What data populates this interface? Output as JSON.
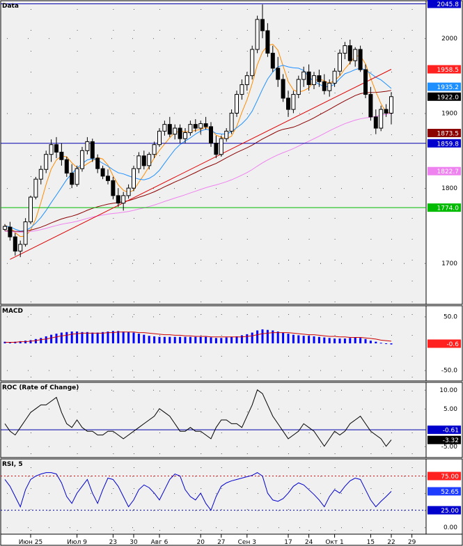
{
  "chart_data": [
    {
      "type": "candlestick",
      "panel": "price",
      "title": "Data",
      "yticks": [
        1700,
        1800,
        1900,
        2000
      ],
      "ylim": [
        1645,
        2050
      ],
      "candles": [
        [
          1745,
          1752,
          1743,
          1749
        ],
        [
          1748,
          1755,
          1730,
          1735
        ],
        [
          1735,
          1740,
          1710,
          1716
        ],
        [
          1716,
          1730,
          1708,
          1725
        ],
        [
          1725,
          1760,
          1722,
          1755
        ],
        [
          1755,
          1790,
          1752,
          1788
        ],
        [
          1788,
          1815,
          1785,
          1812
        ],
        [
          1812,
          1830,
          1805,
          1825
        ],
        [
          1825,
          1850,
          1820,
          1845
        ],
        [
          1845,
          1865,
          1835,
          1858
        ],
        [
          1858,
          1868,
          1840,
          1848
        ],
        [
          1848,
          1860,
          1830,
          1838
        ],
        [
          1838,
          1842,
          1815,
          1820
        ],
        [
          1820,
          1832,
          1800,
          1805
        ],
        [
          1805,
          1830,
          1802,
          1826
        ],
        [
          1826,
          1855,
          1822,
          1850
        ],
        [
          1850,
          1868,
          1845,
          1862
        ],
        [
          1862,
          1866,
          1835,
          1840
        ],
        [
          1840,
          1845,
          1820,
          1826
        ],
        [
          1826,
          1830,
          1812,
          1816
        ],
        [
          1816,
          1825,
          1805,
          1810
        ],
        [
          1810,
          1815,
          1785,
          1790
        ],
        [
          1790,
          1800,
          1775,
          1780
        ],
        [
          1780,
          1795,
          1770,
          1790
        ],
        [
          1790,
          1805,
          1786,
          1800
        ],
        [
          1800,
          1830,
          1796,
          1826
        ],
        [
          1826,
          1848,
          1820,
          1843
        ],
        [
          1843,
          1850,
          1825,
          1830
        ],
        [
          1830,
          1848,
          1825,
          1845
        ],
        [
          1845,
          1862,
          1840,
          1858
        ],
        [
          1858,
          1880,
          1855,
          1876
        ],
        [
          1876,
          1890,
          1870,
          1885
        ],
        [
          1885,
          1895,
          1868,
          1872
        ],
        [
          1872,
          1885,
          1865,
          1880
        ],
        [
          1880,
          1885,
          1860,
          1866
        ],
        [
          1866,
          1880,
          1860,
          1874
        ],
        [
          1874,
          1890,
          1870,
          1885
        ],
        [
          1885,
          1892,
          1875,
          1880
        ],
        [
          1880,
          1890,
          1872,
          1886
        ],
        [
          1886,
          1895,
          1878,
          1882
        ],
        [
          1882,
          1888,
          1855,
          1860
        ],
        [
          1860,
          1870,
          1840,
          1845
        ],
        [
          1845,
          1870,
          1842,
          1866
        ],
        [
          1866,
          1880,
          1862,
          1876
        ],
        [
          1876,
          1905,
          1872,
          1900
        ],
        [
          1900,
          1930,
          1895,
          1925
        ],
        [
          1925,
          1945,
          1918,
          1938
        ],
        [
          1938,
          1955,
          1930,
          1950
        ],
        [
          1950,
          1990,
          1945,
          1985
        ],
        [
          1985,
          2030,
          1980,
          2025
        ],
        [
          2025,
          2045,
          2000,
          2010
        ],
        [
          2010,
          2020,
          1975,
          1980
        ],
        [
          1980,
          1990,
          1955,
          1960
        ],
        [
          1960,
          1975,
          1935,
          1945
        ],
        [
          1945,
          1952,
          1915,
          1920
        ],
        [
          1920,
          1930,
          1895,
          1905
        ],
        [
          1905,
          1930,
          1900,
          1925
        ],
        [
          1925,
          1950,
          1920,
          1945
        ],
        [
          1945,
          1962,
          1935,
          1955
        ],
        [
          1955,
          1965,
          1930,
          1938
        ],
        [
          1938,
          1955,
          1932,
          1950
        ],
        [
          1950,
          1958,
          1935,
          1942
        ],
        [
          1942,
          1952,
          1925,
          1930
        ],
        [
          1930,
          1945,
          1922,
          1940
        ],
        [
          1940,
          1960,
          1935,
          1956
        ],
        [
          1956,
          1985,
          1950,
          1980
        ],
        [
          1980,
          1995,
          1972,
          1990
        ],
        [
          1990,
          1998,
          1965,
          1970
        ],
        [
          1970,
          1988,
          1962,
          1985
        ],
        [
          1985,
          1990,
          1955,
          1958
        ],
        [
          1958,
          1965,
          1920,
          1925
        ],
        [
          1925,
          1935,
          1890,
          1895
        ],
        [
          1895,
          1905,
          1872,
          1880
        ],
        [
          1880,
          1910,
          1876,
          1905
        ],
        [
          1905,
          1912,
          1895,
          1900
        ],
        [
          1900,
          1928,
          1885,
          1922
        ]
      ],
      "last_price": 1922.0,
      "indicators": [
        {
          "name": "fast-ma",
          "color": "#ff8c00",
          "period": 5
        },
        {
          "name": "mid-ma",
          "color": "#1e90ff",
          "period": 10
        },
        {
          "name": "slow-ma",
          "color": "#8b0000",
          "period": 40
        },
        {
          "name": "long-ma",
          "color": "#ee82ee",
          "period": 60
        }
      ],
      "ma_seed": [
        1763,
        1756,
        1752,
        1749,
        1746,
        1744,
        1743,
        1742,
        1741,
        1740,
        1739,
        1739,
        1739,
        1738,
        1738,
        1738,
        1738,
        1738,
        1738,
        1737,
        1737,
        1737,
        1737,
        1737,
        1737,
        1737,
        1737,
        1738,
        1738,
        1738,
        1738,
        1738,
        1739,
        1739,
        1739,
        1740,
        1740,
        1741,
        1741,
        1742,
        1742,
        1743,
        1743,
        1744,
        1744,
        1745,
        1745,
        1746,
        1746,
        1747,
        1747,
        1748,
        1748,
        1749,
        1749,
        1750,
        1750,
        1751,
        1751,
        1752
      ],
      "trendlines": [
        {
          "name": "rising-trendline",
          "color": "#dd0000",
          "from": [
            1,
            1705
          ],
          "to": [
            75,
            1958.5
          ]
        }
      ],
      "hlines": [
        {
          "name": "top-hline",
          "value": 2045.8,
          "color": "#0000aa"
        },
        {
          "name": "support-hline",
          "value": 1859.8,
          "color": "#0000aa"
        },
        {
          "name": "green-hline",
          "value": 1774.0,
          "color": "#00bb00"
        }
      ],
      "value_labels": [
        {
          "name": "label-2045",
          "text": "2045.8",
          "value": 2045.8,
          "bg": "#0000cc",
          "fg": "#ffffff"
        },
        {
          "name": "label-1958",
          "text": "1958.5",
          "value": 1958.5,
          "bg": "#ff2020",
          "fg": "#ffffff"
        },
        {
          "name": "label-1935",
          "text": "1935.2",
          "value": 1935.2,
          "bg": "#1e8fff",
          "fg": "#ffffff"
        },
        {
          "name": "label-1922",
          "text": "1922.0",
          "value": 1922.0,
          "bg": "#000000",
          "fg": "#ffffff"
        },
        {
          "name": "label-1873",
          "text": "1873.5",
          "value": 1873.5,
          "bg": "#8b0000",
          "fg": "#ffffff"
        },
        {
          "name": "label-1859",
          "text": "1859.8",
          "value": 1859.8,
          "bg": "#0000cc",
          "fg": "#ffffff"
        },
        {
          "name": "label-1822",
          "text": "1822.7",
          "value": 1822.7,
          "bg": "#ee82ee",
          "fg": "#ffffff"
        },
        {
          "name": "label-1774",
          "text": "1774.0",
          "value": 1774.0,
          "bg": "#00bb00",
          "fg": "#ffffff"
        }
      ]
    },
    {
      "type": "bar",
      "panel": "macd",
      "title": "MACD",
      "yticks": [
        50.0,
        -50.0
      ],
      "ylim": [
        -70,
        70
      ],
      "values": [
        3,
        2,
        3,
        4,
        5,
        6,
        8,
        10,
        13,
        16,
        18,
        20,
        21,
        22,
        22,
        21,
        21,
        20,
        20,
        21,
        22,
        23,
        23,
        22,
        21,
        20,
        18,
        16,
        14,
        13,
        12,
        12,
        12,
        12,
        12,
        12,
        12,
        12,
        12,
        12,
        11,
        10,
        10,
        11,
        12,
        13,
        15,
        17,
        20,
        24,
        26,
        25,
        24,
        22,
        20,
        18,
        16,
        15,
        14,
        14,
        13,
        12,
        11,
        10,
        9,
        9,
        9,
        10,
        11,
        10,
        8,
        5,
        3,
        1,
        -1,
        -2
      ],
      "signal": [
        2,
        2,
        2,
        3,
        3,
        4,
        5,
        7,
        8,
        10,
        12,
        14,
        15,
        17,
        18,
        19,
        19,
        19,
        19,
        19,
        20,
        20,
        21,
        21,
        21,
        21,
        20,
        20,
        19,
        18,
        17,
        16,
        16,
        15,
        15,
        14,
        14,
        13,
        13,
        13,
        12,
        12,
        12,
        12,
        12,
        12,
        12,
        13,
        14,
        16,
        18,
        19,
        20,
        20,
        20,
        20,
        19,
        18,
        17,
        16,
        16,
        15,
        14,
        13,
        13,
        12,
        12,
        11,
        11,
        11,
        10,
        9,
        8,
        6,
        5,
        4
      ],
      "bar_color": "#0000ff",
      "signal_color": "#cc0000",
      "value_labels": [
        {
          "name": "macd-label",
          "text": "-0.6",
          "value": -0.6,
          "bg": "#ff2020",
          "fg": "#ffffff"
        }
      ]
    },
    {
      "type": "line",
      "panel": "roc",
      "title": "ROC (Rate of Change)",
      "yticks": [
        10.0,
        5.0,
        -5.0
      ],
      "ylim": [
        -8,
        12
      ],
      "values": [
        1,
        -1,
        -2,
        0,
        2,
        4,
        5,
        6,
        6,
        7,
        8,
        4,
        1,
        0,
        2,
        0,
        -1,
        -1,
        -2,
        -2,
        -1,
        -1,
        -2,
        -3,
        -2,
        -1,
        0,
        1,
        2,
        3,
        5,
        4,
        3,
        1,
        -1,
        -1,
        0,
        -1,
        -1,
        -2,
        -3,
        0,
        2,
        2,
        1,
        1,
        0,
        3,
        6,
        10,
        9,
        6,
        3,
        1,
        -1,
        -3,
        -2,
        -1,
        1,
        0,
        -1,
        -3,
        -5,
        -3,
        -1,
        -2,
        -1,
        1,
        2,
        3,
        1,
        -1,
        -2,
        -3,
        -5,
        -3.3
      ],
      "line_color": "#000000",
      "ref_line": {
        "value": -0.61,
        "color": "#0000aa"
      },
      "value_labels": [
        {
          "name": "roc-label-1",
          "text": "-0.61",
          "value": -0.61,
          "bg": "#0000cc",
          "fg": "#ffffff"
        },
        {
          "name": "roc-label-2",
          "text": "-3.32",
          "value": -3.32,
          "bg": "#000000",
          "fg": "#ffffff"
        }
      ]
    },
    {
      "type": "line",
      "panel": "rsi",
      "title": "RSI, 5",
      "yticks": [
        75.0,
        50.0,
        25.0,
        0.0
      ],
      "ylim": [
        -10,
        100
      ],
      "levels": [
        {
          "value": 75,
          "color": "#dd0000"
        },
        {
          "value": 25,
          "color": "#0000aa"
        }
      ],
      "values": [
        70,
        60,
        45,
        30,
        55,
        70,
        75,
        78,
        80,
        80,
        78,
        65,
        45,
        35,
        50,
        60,
        70,
        50,
        35,
        55,
        72,
        70,
        60,
        45,
        30,
        40,
        55,
        62,
        58,
        50,
        40,
        55,
        70,
        78,
        75,
        55,
        45,
        40,
        50,
        35,
        25,
        45,
        60,
        65,
        68,
        70,
        72,
        74,
        76,
        80,
        75,
        50,
        40,
        38,
        42,
        50,
        60,
        65,
        62,
        55,
        48,
        40,
        30,
        45,
        55,
        50,
        60,
        68,
        72,
        70,
        55,
        40,
        30,
        38,
        45,
        52.65
      ],
      "line_color": "#0000cc",
      "value_labels": [
        {
          "name": "rsi-label-75",
          "text": "75.00",
          "value": 75.0,
          "bg": "#ff2020",
          "fg": "#ffffff"
        },
        {
          "name": "rsi-label-52",
          "text": "52.65",
          "value": 52.65,
          "bg": "#1e3cff",
          "fg": "#ffffff"
        },
        {
          "name": "rsi-label-25",
          "text": "25.00",
          "value": 25.0,
          "bg": "#0000cc",
          "fg": "#ffffff"
        }
      ]
    }
  ],
  "time_axis": {
    "labels": [
      {
        "text": "Июн 25",
        "bar": 5
      },
      {
        "text": "Июл 9",
        "bar": 14
      },
      {
        "text": "23",
        "bar": 21
      },
      {
        "text": "30",
        "bar": 25
      },
      {
        "text": "Авг 6",
        "bar": 30
      },
      {
        "text": "20",
        "bar": 38
      },
      {
        "text": "27",
        "bar": 42
      },
      {
        "text": "Сен 3",
        "bar": 47
      },
      {
        "text": "17",
        "bar": 55
      },
      {
        "text": "24",
        "bar": 59
      },
      {
        "text": "Окт 1",
        "bar": 64
      },
      {
        "text": "15",
        "bar": 71
      },
      {
        "text": "22",
        "bar": 75
      },
      {
        "text": "29",
        "bar": 79
      }
    ]
  },
  "colors": {
    "panel_bg": "#f0f0f0",
    "grid_dot": "#555555",
    "border": "#000000"
  }
}
